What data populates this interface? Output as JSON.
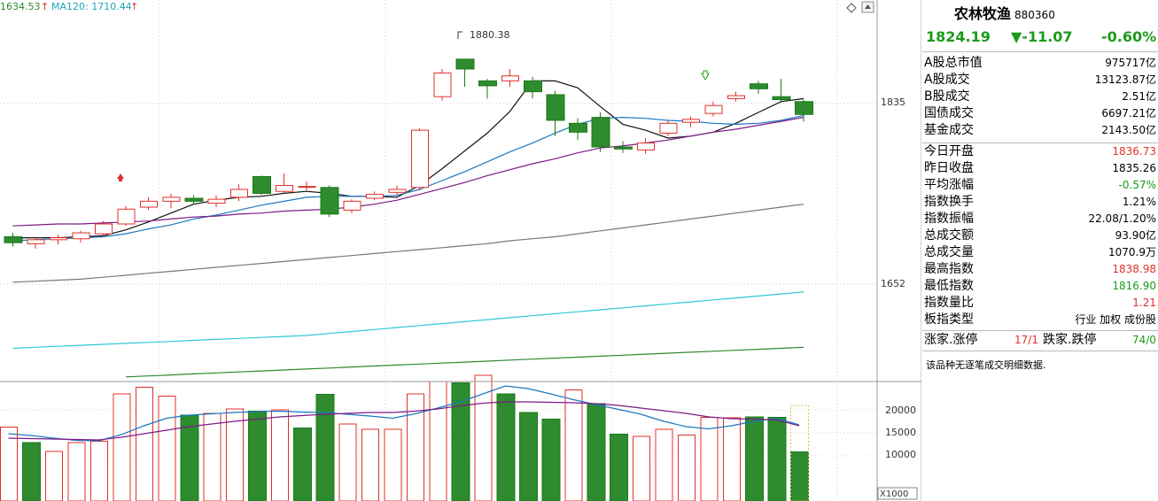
{
  "overlay": {
    "ma60_label": "1634.53",
    "ma120_label": "MA120: 1710.44",
    "flag_label": "1880.38",
    "price_axis": [
      "1835",
      "1652"
    ],
    "volume_axis": [
      "20000",
      "15000",
      "10000"
    ],
    "volume_unit": "X1000"
  },
  "panel": {
    "title": "农林牧渔",
    "code": "880360",
    "price": "1824.19",
    "change": "▼-11.07",
    "change_pct": "-0.60%",
    "rows": [
      {
        "k": "A股总市值",
        "v": "975717亿",
        "color": "#000"
      },
      {
        "k": "A股成交",
        "v": "13123.87亿",
        "color": "#000"
      },
      {
        "k": "B股成交",
        "v": "2.51亿",
        "color": "#000"
      },
      {
        "k": "国债成交",
        "v": "6697.21亿",
        "color": "#000"
      },
      {
        "k": "基金成交",
        "v": "2143.50亿",
        "color": "#000"
      },
      {
        "k": "今日开盘",
        "v": "1836.73",
        "color": "#e0302a"
      },
      {
        "k": "昨日收盘",
        "v": "1835.26",
        "color": "#000"
      },
      {
        "k": "平均涨幅",
        "v": "-0.57%",
        "color": "#1a9b1a"
      },
      {
        "k": "指数换手",
        "v": "1.21%",
        "color": "#000"
      },
      {
        "k": "指数振幅",
        "v": "22.08/1.20%",
        "color": "#000"
      },
      {
        "k": "总成交额",
        "v": "93.90亿",
        "color": "#000"
      },
      {
        "k": "总成交量",
        "v": "1070.9万",
        "color": "#000"
      },
      {
        "k": "最高指数",
        "v": "1838.98",
        "color": "#e0302a"
      },
      {
        "k": "最低指数",
        "v": "1816.90",
        "color": "#1a9b1a"
      },
      {
        "k": "指数量比",
        "v": "1.21",
        "color": "#e0302a"
      },
      {
        "k": "板指类型",
        "v": "行业 加权 成份股",
        "color": "#000"
      }
    ],
    "rise_label": "涨家.涨停",
    "rise_value": "17/1",
    "fall_label": "跌家.跌停",
    "fall_value": "74/0",
    "message": "该品种无逐笔成交明细数据."
  },
  "chart_data": {
    "type": "candlestick",
    "candles": [
      {
        "o": 1700,
        "c": 1694,
        "h": 1704,
        "l": 1690
      },
      {
        "o": 1693,
        "c": 1697,
        "h": 1699,
        "l": 1688
      },
      {
        "o": 1697,
        "c": 1699,
        "h": 1702,
        "l": 1692
      },
      {
        "o": 1698,
        "c": 1704,
        "h": 1706,
        "l": 1694
      },
      {
        "o": 1703,
        "c": 1713,
        "h": 1716,
        "l": 1700
      },
      {
        "o": 1713,
        "c": 1728,
        "h": 1731,
        "l": 1711
      },
      {
        "o": 1730,
        "c": 1736,
        "h": 1740,
        "l": 1727
      },
      {
        "o": 1736,
        "c": 1740,
        "h": 1744,
        "l": 1729
      },
      {
        "o": 1739,
        "c": 1736,
        "h": 1742,
        "l": 1733
      },
      {
        "o": 1734,
        "c": 1738,
        "h": 1742,
        "l": 1730
      },
      {
        "o": 1740,
        "c": 1748,
        "h": 1753,
        "l": 1736
      },
      {
        "o": 1761,
        "c": 1744,
        "h": 1762,
        "l": 1742
      },
      {
        "o": 1746,
        "c": 1752,
        "h": 1764,
        "l": 1744
      },
      {
        "o": 1751,
        "c": 1751,
        "h": 1756,
        "l": 1747
      },
      {
        "o": 1750,
        "c": 1723,
        "h": 1752,
        "l": 1720
      },
      {
        "o": 1727,
        "c": 1736,
        "h": 1738,
        "l": 1724
      },
      {
        "o": 1739,
        "c": 1743,
        "h": 1746,
        "l": 1737
      },
      {
        "o": 1745,
        "c": 1748,
        "h": 1752,
        "l": 1742
      },
      {
        "o": 1750,
        "c": 1808,
        "h": 1810,
        "l": 1747
      },
      {
        "o": 1842,
        "c": 1866,
        "h": 1870,
        "l": 1838
      },
      {
        "o": 1880,
        "c": 1870,
        "h": 1880,
        "l": 1852
      },
      {
        "o": 1858,
        "c": 1853,
        "h": 1860,
        "l": 1840
      },
      {
        "o": 1858,
        "c": 1863,
        "h": 1870,
        "l": 1852
      },
      {
        "o": 1858,
        "c": 1847,
        "h": 1862,
        "l": 1840
      },
      {
        "o": 1844,
        "c": 1818,
        "h": 1848,
        "l": 1802
      },
      {
        "o": 1815,
        "c": 1806,
        "h": 1820,
        "l": 1798
      },
      {
        "o": 1821,
        "c": 1791,
        "h": 1826,
        "l": 1786
      },
      {
        "o": 1791,
        "c": 1789,
        "h": 1797,
        "l": 1785
      },
      {
        "o": 1788,
        "c": 1795,
        "h": 1800,
        "l": 1784
      },
      {
        "o": 1805,
        "c": 1815,
        "h": 1818,
        "l": 1802
      },
      {
        "o": 1816,
        "c": 1819,
        "h": 1822,
        "l": 1811
      },
      {
        "o": 1825,
        "c": 1833,
        "h": 1837,
        "l": 1822
      },
      {
        "o": 1840,
        "c": 1843,
        "h": 1847,
        "l": 1837
      },
      {
        "o": 1855,
        "c": 1850,
        "h": 1858,
        "l": 1845
      },
      {
        "o": 1842,
        "c": 1839,
        "h": 1860,
        "l": 1836
      },
      {
        "o": 1837,
        "c": 1824,
        "h": 1839,
        "l": 1817
      }
    ],
    "volume": [
      {
        "v": 16500,
        "up": true
      },
      {
        "v": 13000,
        "up": false
      },
      {
        "v": 11000,
        "up": true
      },
      {
        "v": 13000,
        "up": true
      },
      {
        "v": 13300,
        "up": true
      },
      {
        "v": 24000,
        "up": true
      },
      {
        "v": 25500,
        "up": true
      },
      {
        "v": 23500,
        "up": true
      },
      {
        "v": 19200,
        "up": false
      },
      {
        "v": 19600,
        "up": true
      },
      {
        "v": 20600,
        "up": true
      },
      {
        "v": 20100,
        "up": false
      },
      {
        "v": 20400,
        "up": true
      },
      {
        "v": 16300,
        "up": false
      },
      {
        "v": 23900,
        "up": false
      },
      {
        "v": 17200,
        "up": true
      },
      {
        "v": 16000,
        "up": true
      },
      {
        "v": 16000,
        "up": true
      },
      {
        "v": 24000,
        "up": true
      },
      {
        "v": 26800,
        "up": true
      },
      {
        "v": 26500,
        "up": false
      },
      {
        "v": 28200,
        "up": true
      },
      {
        "v": 24000,
        "up": false
      },
      {
        "v": 19800,
        "up": false
      },
      {
        "v": 18300,
        "up": false
      },
      {
        "v": 24900,
        "up": true
      },
      {
        "v": 21800,
        "up": false
      },
      {
        "v": 14900,
        "up": false
      },
      {
        "v": 14400,
        "up": true
      },
      {
        "v": 16000,
        "up": true
      },
      {
        "v": 14700,
        "up": true
      },
      {
        "v": 18700,
        "up": true
      },
      {
        "v": 18600,
        "up": true
      },
      {
        "v": 18800,
        "up": false
      },
      {
        "v": 18700,
        "up": false
      },
      {
        "v": 10900,
        "up": false
      }
    ],
    "ma_lines": [
      {
        "color": "#111111",
        "values": [
          1699,
          1699,
          1699,
          1700,
          1701,
          1707,
          1715,
          1724,
          1733,
          1737,
          1740,
          1741,
          1744,
          1746,
          1744,
          1741,
          1741,
          1740,
          1752,
          1769,
          1787,
          1805,
          1827,
          1858,
          1858,
          1851,
          1832,
          1814,
          1808,
          1800,
          1802,
          1806,
          1815,
          1826,
          1837,
          1840
        ]
      },
      {
        "color": "#1a78c2",
        "values": [
          1696,
          1697,
          1698,
          1699,
          1700,
          1703,
          1708,
          1712,
          1718,
          1722,
          1727,
          1732,
          1736,
          1740,
          1741,
          1741,
          1741,
          1742,
          1748,
          1757,
          1766,
          1776,
          1786,
          1795,
          1805,
          1814,
          1820,
          1821,
          1820,
          1818,
          1817,
          1815,
          1814,
          1815,
          1818,
          1823
        ]
      },
      {
        "color": "#7d1a86",
        "values": [
          1711,
          1712,
          1713,
          1713,
          1714,
          1715,
          1716,
          1718,
          1720,
          1721,
          1723,
          1724,
          1726,
          1727,
          1728,
          1730,
          1733,
          1737,
          1743,
          1749,
          1755,
          1762,
          1768,
          1774,
          1779,
          1785,
          1790,
          1792,
          1795,
          1798,
          1802,
          1806,
          1809,
          1813,
          1817,
          1821
        ]
      },
      {
        "color": "#777777",
        "values": [
          1654,
          1655,
          1656,
          1657,
          1659,
          1661,
          1663,
          1665,
          1667,
          1669,
          1671,
          1673,
          1675,
          1677,
          1679,
          1681,
          1683,
          1685,
          1687,
          1689,
          1691,
          1693,
          1696,
          1698,
          1700,
          1703,
          1706,
          1709,
          1712,
          1715,
          1718,
          1721,
          1724,
          1727,
          1730,
          1733
        ]
      },
      {
        "color": "#2ec8d6",
        "values": [
          1587,
          1588,
          1589,
          1590,
          1591,
          1592,
          1593,
          1594,
          1595,
          1596,
          1597,
          1598,
          1599,
          1600,
          1602,
          1604,
          1606,
          1608,
          1610,
          1612,
          1614,
          1616,
          1618,
          1620,
          1622,
          1624,
          1626,
          1628,
          1630,
          1632,
          1634,
          1636,
          1638,
          1640,
          1642,
          1644
        ]
      },
      {
        "color": "#2d8a2d",
        "values": [
          null,
          null,
          null,
          null,
          null,
          1558,
          1559,
          1560,
          1561,
          1562,
          1563,
          1564,
          1565,
          1566,
          1567,
          1568,
          1569,
          1570,
          1571,
          1572,
          1573,
          1574,
          1575,
          1576,
          1577,
          1578,
          1579,
          1580,
          1581,
          1582,
          1583,
          1584,
          1585,
          1586,
          1587,
          1588
        ]
      }
    ],
    "vol_ma_lines": [
      {
        "color": "#1a78c2",
        "values": [
          15000,
          14600,
          14000,
          13500,
          13400,
          14800,
          16800,
          18500,
          19200,
          19500,
          19800,
          20000,
          20100,
          19900,
          19800,
          19400,
          19000,
          18500,
          19500,
          20800,
          22200,
          24000,
          25800,
          25200,
          24000,
          22700,
          21600,
          20500,
          19400,
          17800,
          16600,
          16100,
          16800,
          17800,
          18500,
          17000
        ]
      },
      {
        "color": "#7d1a86",
        "values": [
          14000,
          13900,
          13800,
          13700,
          13600,
          14200,
          15000,
          15800,
          16600,
          17200,
          17800,
          18300,
          18800,
          19100,
          19400,
          19600,
          19800,
          19800,
          20100,
          20600,
          21300,
          21900,
          22200,
          22200,
          22100,
          22000,
          21800,
          21400,
          20800,
          20200,
          19600,
          18800,
          18400,
          18300,
          18100,
          16800
        ]
      }
    ]
  }
}
